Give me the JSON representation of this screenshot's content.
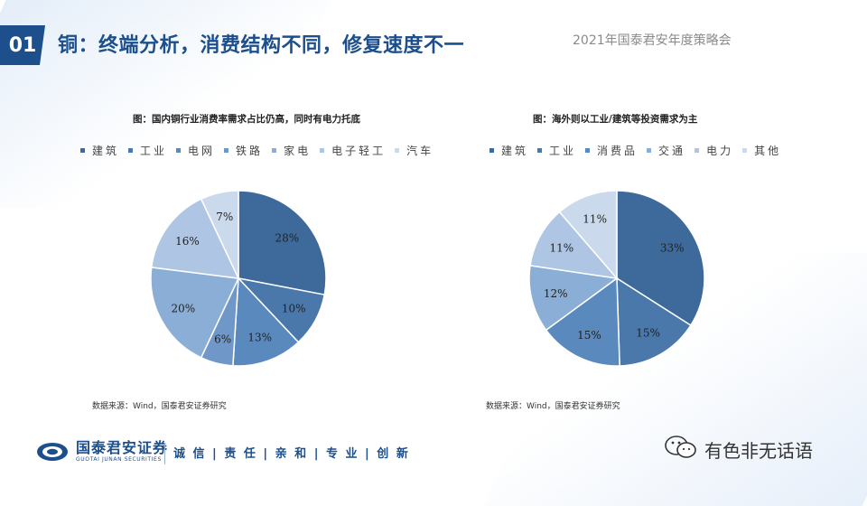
{
  "header": {
    "section_number": "01",
    "title": "铜：终端分析，消费结构不同，修复速度不一",
    "conference": "2021年国泰君安年度策略会"
  },
  "charts": {
    "left": {
      "title": "图：国内铜行业消费率需求占比仍高，同时有电力托底",
      "source": "数据来源：Wind，国泰君安证券研究"
    },
    "right": {
      "title": "图：海外则以工业/建筑等投资需求为主",
      "source": "数据来源：Wind，国泰君安证券研究"
    }
  },
  "chart_data": [
    {
      "type": "pie",
      "title": "图：国内铜行业消费率需求占比仍高，同时有电力托底",
      "categories": [
        "建筑",
        "工业",
        "电网",
        "铁路",
        "家电",
        "电子轻工",
        "汽车"
      ],
      "values": [
        28,
        10,
        13,
        6,
        20,
        16,
        7
      ],
      "value_labels": [
        "28%",
        "10%",
        "13%",
        "6%",
        "20%",
        "16%",
        "7%"
      ],
      "colors": [
        "#3d6a9b",
        "#4a78aa",
        "#5a89bd",
        "#6f98c8",
        "#8aaed6",
        "#aec6e4",
        "#cad9ec"
      ],
      "legend": "top"
    },
    {
      "type": "pie",
      "title": "图：海外则以工业/建筑等投资需求为主",
      "categories": [
        "建筑",
        "工业",
        "消费品",
        "交通",
        "电力",
        "其他"
      ],
      "values": [
        33,
        15,
        15,
        12,
        11,
        11
      ],
      "value_labels": [
        "33%",
        "15%",
        "15%",
        "12%",
        "11%",
        "11%"
      ],
      "colors": [
        "#3d6a9b",
        "#4a78aa",
        "#5a89bd",
        "#8aaed6",
        "#aec6e4",
        "#cad9ec"
      ],
      "legend": "top"
    }
  ],
  "footer": {
    "logo_cn": "国泰君安证券",
    "logo_en": "GUOTAI JUNAN SECURITIES",
    "slogan": "诚 信 | 责 任 | 亲 和 | 专 业 | 创 新",
    "watermark": "有色非无话语"
  },
  "colors": {
    "brand": "#1c4f8c"
  }
}
